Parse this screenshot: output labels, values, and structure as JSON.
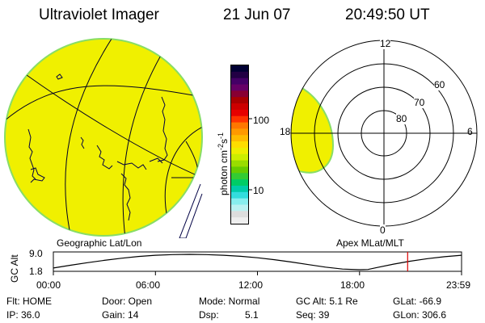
{
  "header": {
    "instrument": "Ultraviolet Imager",
    "date": "21 Jun 07",
    "time": "20:49:50 UT"
  },
  "geo_panel": {
    "label": "Geographic Lat/Lon"
  },
  "polar_panel": {
    "label": "Apex MLat/MLT",
    "mlt_labels": [
      "12",
      "18",
      "6",
      "0"
    ],
    "lat_labels": [
      "60",
      "70",
      "80"
    ]
  },
  "colorbar": {
    "unit_label": "photon cm",
    "unit_exp1": "-2",
    "unit_s": "s",
    "unit_exp2": "-1",
    "tick_labels": [
      "100",
      "10"
    ],
    "colors": [
      "#000033",
      "#220044",
      "#440066",
      "#660066",
      "#880033",
      "#aa0000",
      "#cc0000",
      "#e60000",
      "#ff3300",
      "#ff7700",
      "#ff9900",
      "#ffbb00",
      "#ffdd00",
      "#eeee00",
      "#ccee00",
      "#99dd00",
      "#66cc00",
      "#33cc33",
      "#00cc66",
      "#00ccaa",
      "#33dddd",
      "#88eeee",
      "#bbf2f2",
      "#dddddd",
      "#eeeeee"
    ]
  },
  "chart_data": {
    "type": "line",
    "title": "GC Alt",
    "ylabel": "GC Alt",
    "y_tick_labels": [
      "9.0",
      "1.8"
    ],
    "ylim": [
      1.8,
      9.0
    ],
    "x_tick_labels": [
      "00:00",
      "06:00",
      "12:00",
      "18:00",
      "23:59"
    ],
    "xlim_hours": [
      0,
      24
    ],
    "series": [
      {
        "x_hours": [
          0,
          1,
          2,
          3,
          4,
          5,
          6,
          7,
          8,
          9,
          10,
          11,
          12,
          13,
          14,
          15,
          16,
          17,
          18,
          18.5,
          19,
          20,
          21,
          22,
          23,
          24
        ],
        "values": [
          2.6,
          3.9,
          5.1,
          6.2,
          7.2,
          8.0,
          8.6,
          8.9,
          9.0,
          8.9,
          8.6,
          8.1,
          7.4,
          6.5,
          5.4,
          4.2,
          3.0,
          2.1,
          1.8,
          1.9,
          2.8,
          4.4,
          5.8,
          7.0,
          7.9,
          8.6
        ]
      }
    ],
    "current_time_hours": 20.83,
    "marker_color": "#dd0000"
  },
  "status": {
    "flt": "Flt: HOME",
    "ip": "IP: 36.0",
    "door": "Door: Open",
    "gain": "Gain: 14",
    "mode": "Mode: Normal",
    "dsp_label": "Dsp:",
    "dsp_value": "5.1",
    "gc_alt": "GC Alt: 5.1 Re",
    "seq": "Seq: 39",
    "glat": "GLat: -66.9",
    "glon": "GLon: 306.6"
  },
  "colors": {
    "image_fill": "#f0f000",
    "image_edge": "#88dd66",
    "grid": "#000022"
  }
}
